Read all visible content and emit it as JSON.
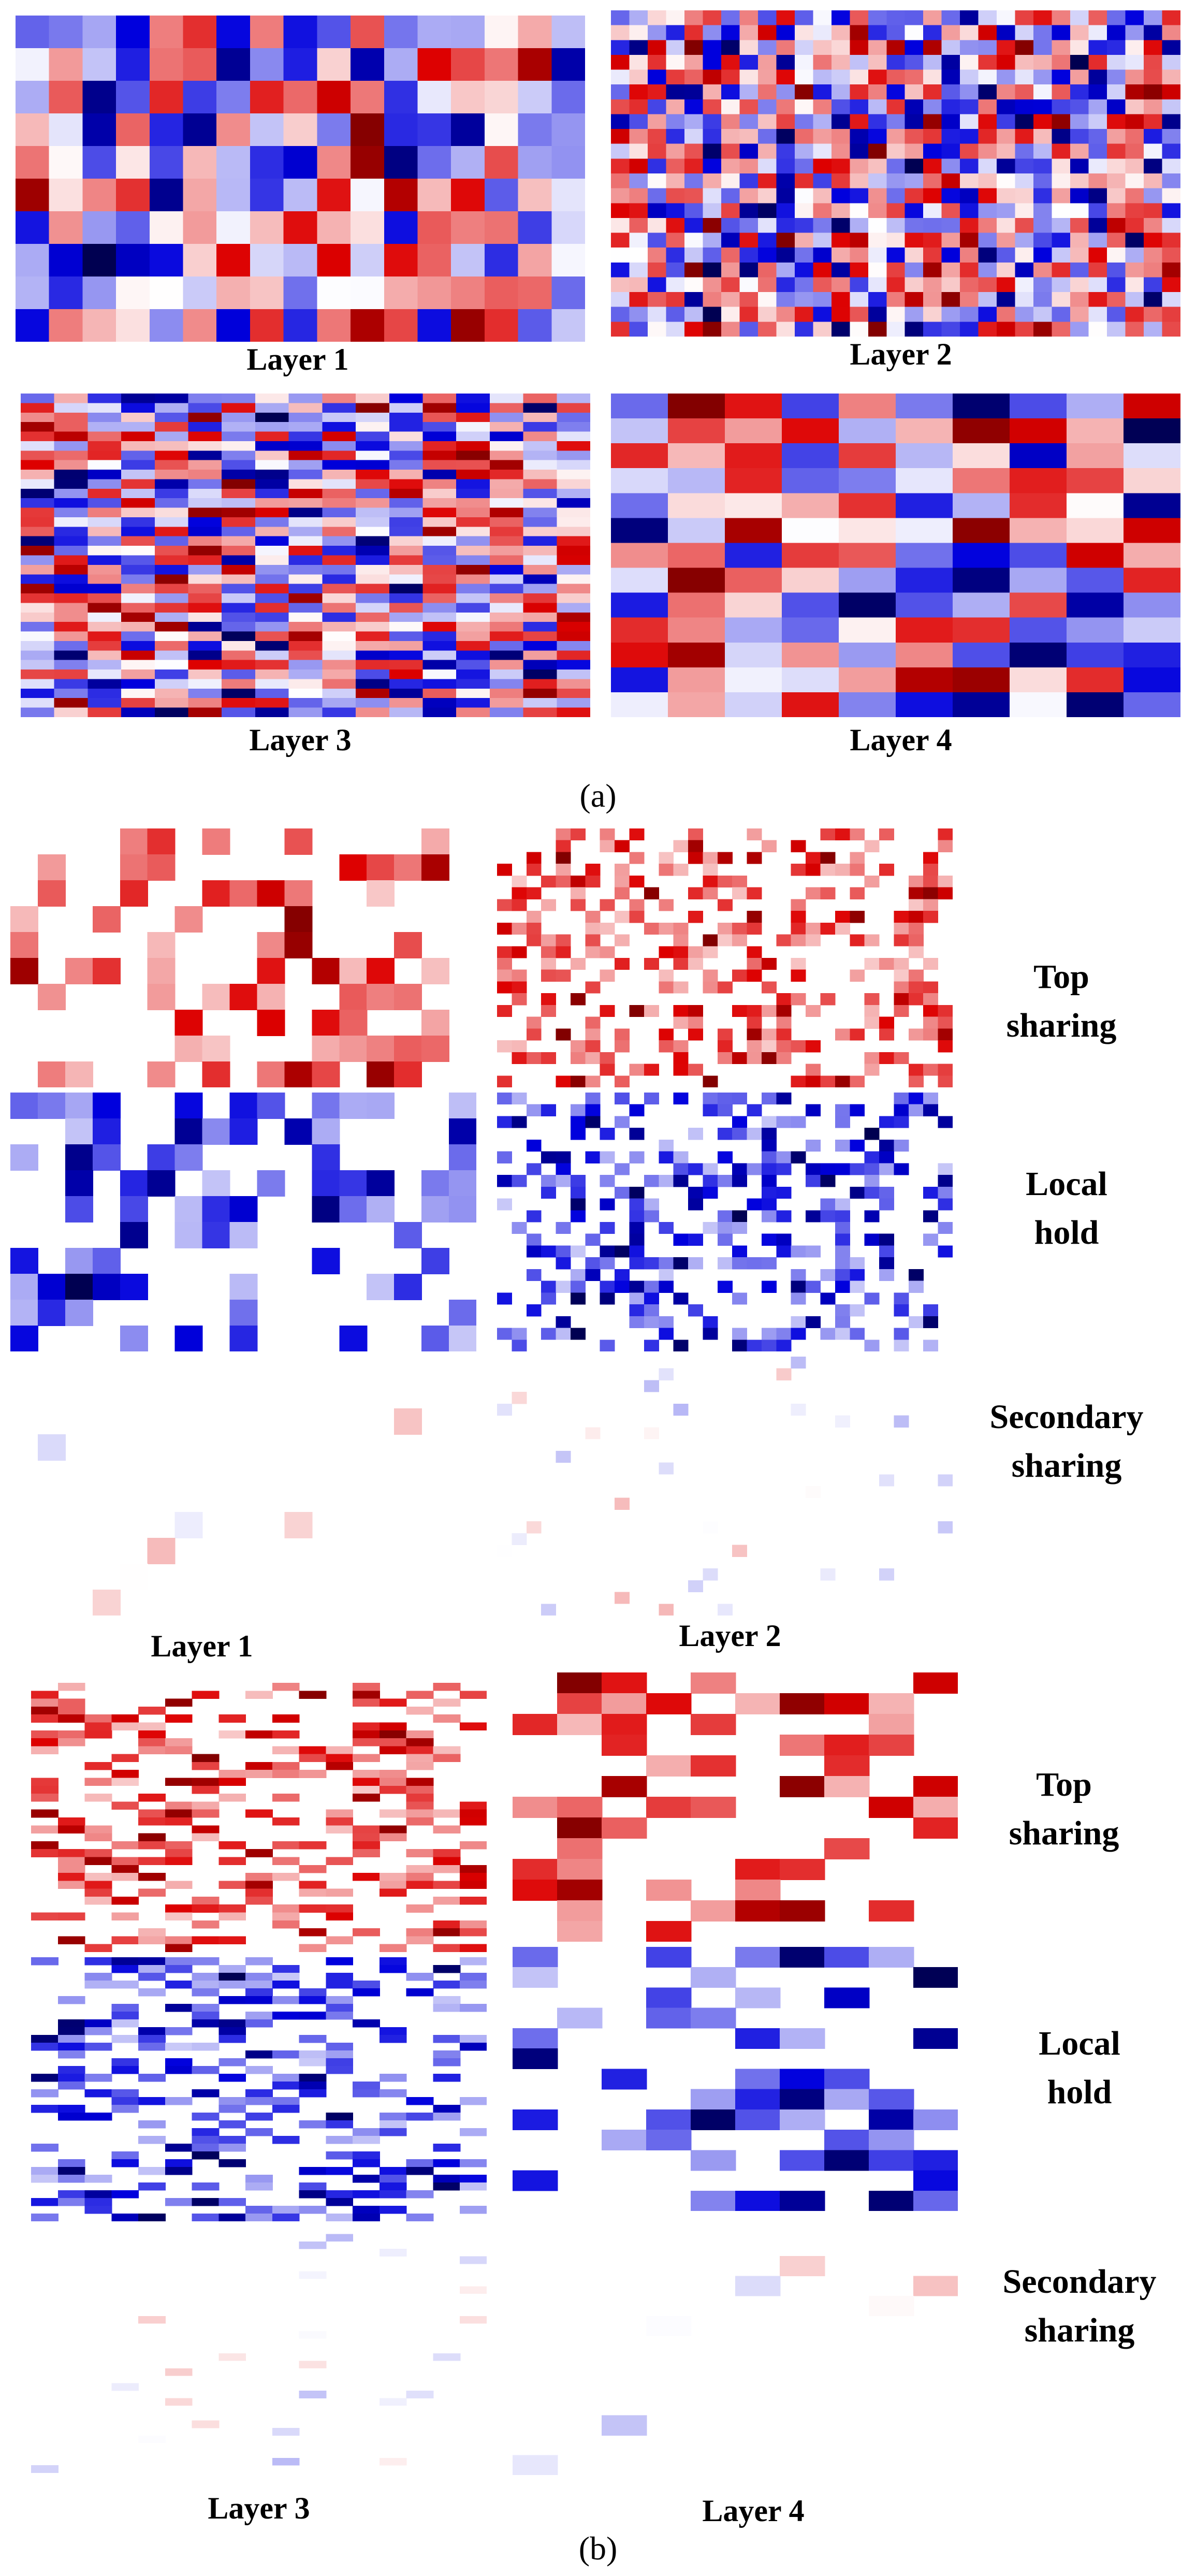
{
  "panel_a": {
    "tag": "(a)",
    "heatmaps": [
      {
        "label": "Layer 1",
        "rows": 10,
        "cols": 17,
        "mode": "full",
        "seed": 11
      },
      {
        "label": "Layer 2",
        "rows": 22,
        "cols": 31,
        "mode": "full",
        "seed": 23
      },
      {
        "label": "Layer 3",
        "rows": 34,
        "cols": 17,
        "mode": "full",
        "seed": 37
      },
      {
        "label": "Layer 4",
        "rows": 13,
        "cols": 10,
        "mode": "full",
        "seed": 41
      }
    ]
  },
  "panel_b": {
    "tag": "(b)",
    "groups": [
      {
        "label_left": "Layer 1",
        "label_right": "Layer 2",
        "categories": [
          {
            "name_line1": "Top",
            "name_line2": "sharing"
          },
          {
            "name_line1": "Local",
            "name_line2": "hold"
          },
          {
            "name_line1": "Secondary",
            "name_line2": "sharing"
          }
        ],
        "left": {
          "rows": 10,
          "cols": 17,
          "seed": 11
        },
        "right": {
          "rows": 22,
          "cols": 31,
          "seed": 23
        }
      },
      {
        "label_left": "Layer 3",
        "label_right": "Layer 4",
        "categories": [
          {
            "name_line1": "Top",
            "name_line2": "sharing"
          },
          {
            "name_line1": "Local",
            "name_line2": "hold"
          },
          {
            "name_line1": "Secondary",
            "name_line2": "sharing"
          }
        ],
        "left": {
          "rows": 34,
          "cols": 17,
          "seed": 37
        },
        "right": {
          "rows": 13,
          "cols": 10,
          "seed": 41
        }
      }
    ]
  },
  "colors": {
    "positive": "#dd0000",
    "negative": "#0000dd",
    "dark_positive": "#800000",
    "dark_negative": "#000050",
    "neutral": "#ffffff"
  }
}
